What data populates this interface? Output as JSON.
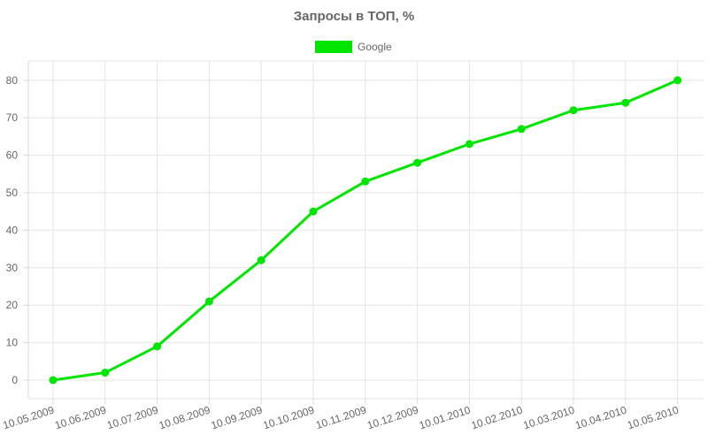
{
  "chart_data": {
    "type": "line",
    "title": "Запросы в ТОП, %",
    "xlabel": "",
    "ylabel": "",
    "categories": [
      "10.05.2009",
      "10.06.2009",
      "10.07.2009",
      "10.08.2009",
      "10.09.2009",
      "10.10.2009",
      "10.11.2009",
      "10.12.2009",
      "10.01.2010",
      "10.02.2010",
      "10.03.2010",
      "10.04.2010",
      "10.05.2010"
    ],
    "series": [
      {
        "name": "Google",
        "color": "#00e600",
        "values": [
          0,
          2,
          9,
          21,
          32,
          45,
          53,
          58,
          63,
          67,
          72,
          74,
          80
        ]
      }
    ],
    "ylim": [
      0,
      80
    ],
    "yticks": [
      0,
      10,
      20,
      30,
      40,
      50,
      60,
      70,
      80
    ],
    "grid": true,
    "legend_position": "top"
  }
}
